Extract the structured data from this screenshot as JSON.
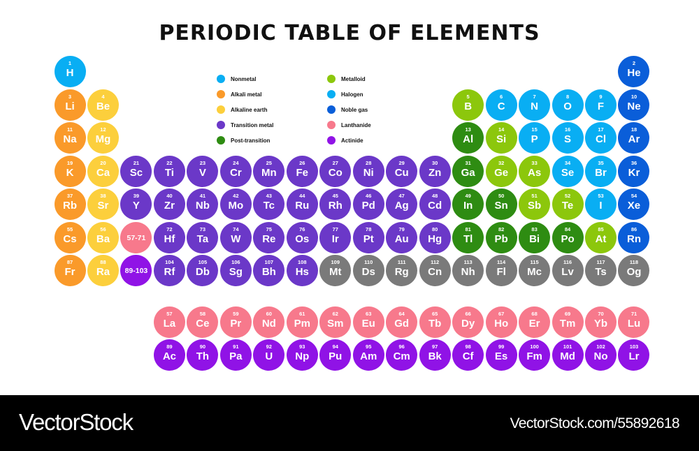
{
  "title": "PERIODIC TABLE OF ELEMENTS",
  "colors": {
    "nonmetal": "#09AEF3",
    "alkali": "#FA9A2A",
    "alkaline": "#FCCF3C",
    "transition": "#6B38C8",
    "post": "#2E8C12",
    "metalloid": "#8CC70C",
    "halogen": "#09AEF3",
    "noble": "#0A5ED9",
    "lanthanide": "#F7798C",
    "actinide": "#9013E6",
    "unknown": "#7A7A7A"
  },
  "legend": [
    {
      "key": "nonmetal",
      "label": "Nonmetal"
    },
    {
      "key": "alkali",
      "label": "Alkali metal"
    },
    {
      "key": "alkaline",
      "label": "Alkaline earth"
    },
    {
      "key": "transition",
      "label": "Transition metal"
    },
    {
      "key": "post",
      "label": "Post-transition"
    },
    {
      "key": "metalloid",
      "label": "Metalloid"
    },
    {
      "key": "halogen",
      "label": "Halogen"
    },
    {
      "key": "noble",
      "label": "Noble gas"
    },
    {
      "key": "lanthanide",
      "label": "Lanthanide"
    },
    {
      "key": "actinide",
      "label": "Actinide"
    }
  ],
  "elements": [
    {
      "n": "1",
      "s": "H",
      "c": "nonmetal",
      "col": 1,
      "row": 1
    },
    {
      "n": "2",
      "s": "He",
      "c": "noble",
      "col": 18,
      "row": 1
    },
    {
      "n": "3",
      "s": "Li",
      "c": "alkali",
      "col": 1,
      "row": 2
    },
    {
      "n": "4",
      "s": "Be",
      "c": "alkaline",
      "col": 2,
      "row": 2
    },
    {
      "n": "5",
      "s": "B",
      "c": "metalloid",
      "col": 13,
      "row": 2
    },
    {
      "n": "6",
      "s": "C",
      "c": "nonmetal",
      "col": 14,
      "row": 2
    },
    {
      "n": "7",
      "s": "N",
      "c": "nonmetal",
      "col": 15,
      "row": 2
    },
    {
      "n": "8",
      "s": "O",
      "c": "nonmetal",
      "col": 16,
      "row": 2
    },
    {
      "n": "9",
      "s": "F",
      "c": "halogen",
      "col": 17,
      "row": 2
    },
    {
      "n": "10",
      "s": "Ne",
      "c": "noble",
      "col": 18,
      "row": 2
    },
    {
      "n": "11",
      "s": "Na",
      "c": "alkali",
      "col": 1,
      "row": 3
    },
    {
      "n": "12",
      "s": "Mg",
      "c": "alkaline",
      "col": 2,
      "row": 3
    },
    {
      "n": "13",
      "s": "Al",
      "c": "post",
      "col": 13,
      "row": 3
    },
    {
      "n": "14",
      "s": "Si",
      "c": "metalloid",
      "col": 14,
      "row": 3
    },
    {
      "n": "15",
      "s": "P",
      "c": "nonmetal",
      "col": 15,
      "row": 3
    },
    {
      "n": "16",
      "s": "S",
      "c": "nonmetal",
      "col": 16,
      "row": 3
    },
    {
      "n": "17",
      "s": "Cl",
      "c": "halogen",
      "col": 17,
      "row": 3
    },
    {
      "n": "18",
      "s": "Ar",
      "c": "noble",
      "col": 18,
      "row": 3
    },
    {
      "n": "19",
      "s": "K",
      "c": "alkali",
      "col": 1,
      "row": 4
    },
    {
      "n": "20",
      "s": "Ca",
      "c": "alkaline",
      "col": 2,
      "row": 4
    },
    {
      "n": "21",
      "s": "Sc",
      "c": "transition",
      "col": 3,
      "row": 4
    },
    {
      "n": "22",
      "s": "Ti",
      "c": "transition",
      "col": 4,
      "row": 4
    },
    {
      "n": "23",
      "s": "V",
      "c": "transition",
      "col": 5,
      "row": 4
    },
    {
      "n": "24",
      "s": "Cr",
      "c": "transition",
      "col": 6,
      "row": 4
    },
    {
      "n": "25",
      "s": "Mn",
      "c": "transition",
      "col": 7,
      "row": 4
    },
    {
      "n": "26",
      "s": "Fe",
      "c": "transition",
      "col": 8,
      "row": 4
    },
    {
      "n": "27",
      "s": "Co",
      "c": "transition",
      "col": 9,
      "row": 4
    },
    {
      "n": "28",
      "s": "Ni",
      "c": "transition",
      "col": 10,
      "row": 4
    },
    {
      "n": "29",
      "s": "Cu",
      "c": "transition",
      "col": 11,
      "row": 4
    },
    {
      "n": "30",
      "s": "Zn",
      "c": "transition",
      "col": 12,
      "row": 4
    },
    {
      "n": "31",
      "s": "Ga",
      "c": "post",
      "col": 13,
      "row": 4
    },
    {
      "n": "32",
      "s": "Ge",
      "c": "metalloid",
      "col": 14,
      "row": 4
    },
    {
      "n": "33",
      "s": "As",
      "c": "metalloid",
      "col": 15,
      "row": 4
    },
    {
      "n": "34",
      "s": "Se",
      "c": "nonmetal",
      "col": 16,
      "row": 4
    },
    {
      "n": "35",
      "s": "Br",
      "c": "halogen",
      "col": 17,
      "row": 4
    },
    {
      "n": "36",
      "s": "Kr",
      "c": "noble",
      "col": 18,
      "row": 4
    },
    {
      "n": "37",
      "s": "Rb",
      "c": "alkali",
      "col": 1,
      "row": 5
    },
    {
      "n": "38",
      "s": "Sr",
      "c": "alkaline",
      "col": 2,
      "row": 5
    },
    {
      "n": "39",
      "s": "Y",
      "c": "transition",
      "col": 3,
      "row": 5
    },
    {
      "n": "40",
      "s": "Zr",
      "c": "transition",
      "col": 4,
      "row": 5
    },
    {
      "n": "41",
      "s": "Nb",
      "c": "transition",
      "col": 5,
      "row": 5
    },
    {
      "n": "42",
      "s": "Mo",
      "c": "transition",
      "col": 6,
      "row": 5
    },
    {
      "n": "43",
      "s": "Tc",
      "c": "transition",
      "col": 7,
      "row": 5
    },
    {
      "n": "44",
      "s": "Ru",
      "c": "transition",
      "col": 8,
      "row": 5
    },
    {
      "n": "45",
      "s": "Rh",
      "c": "transition",
      "col": 9,
      "row": 5
    },
    {
      "n": "46",
      "s": "Pd",
      "c": "transition",
      "col": 10,
      "row": 5
    },
    {
      "n": "47",
      "s": "Ag",
      "c": "transition",
      "col": 11,
      "row": 5
    },
    {
      "n": "48",
      "s": "Cd",
      "c": "transition",
      "col": 12,
      "row": 5
    },
    {
      "n": "49",
      "s": "In",
      "c": "post",
      "col": 13,
      "row": 5
    },
    {
      "n": "50",
      "s": "Sn",
      "c": "post",
      "col": 14,
      "row": 5
    },
    {
      "n": "51",
      "s": "Sb",
      "c": "metalloid",
      "col": 15,
      "row": 5
    },
    {
      "n": "52",
      "s": "Te",
      "c": "metalloid",
      "col": 16,
      "row": 5
    },
    {
      "n": "53",
      "s": "I",
      "c": "halogen",
      "col": 17,
      "row": 5
    },
    {
      "n": "54",
      "s": "Xe",
      "c": "noble",
      "col": 18,
      "row": 5
    },
    {
      "n": "55",
      "s": "Cs",
      "c": "alkali",
      "col": 1,
      "row": 6
    },
    {
      "n": "56",
      "s": "Ba",
      "c": "alkaline",
      "col": 2,
      "row": 6
    },
    {
      "n": "",
      "s": "57-71",
      "c": "lanthanide",
      "col": 3,
      "row": 6,
      "range": true
    },
    {
      "n": "72",
      "s": "Hf",
      "c": "transition",
      "col": 4,
      "row": 6
    },
    {
      "n": "73",
      "s": "Ta",
      "c": "transition",
      "col": 5,
      "row": 6
    },
    {
      "n": "74",
      "s": "W",
      "c": "transition",
      "col": 6,
      "row": 6
    },
    {
      "n": "75",
      "s": "Re",
      "c": "transition",
      "col": 7,
      "row": 6
    },
    {
      "n": "76",
      "s": "Os",
      "c": "transition",
      "col": 8,
      "row": 6
    },
    {
      "n": "77",
      "s": "Ir",
      "c": "transition",
      "col": 9,
      "row": 6
    },
    {
      "n": "78",
      "s": "Pt",
      "c": "transition",
      "col": 10,
      "row": 6
    },
    {
      "n": "79",
      "s": "Au",
      "c": "transition",
      "col": 11,
      "row": 6
    },
    {
      "n": "80",
      "s": "Hg",
      "c": "transition",
      "col": 12,
      "row": 6
    },
    {
      "n": "81",
      "s": "Tl",
      "c": "post",
      "col": 13,
      "row": 6
    },
    {
      "n": "82",
      "s": "Pb",
      "c": "post",
      "col": 14,
      "row": 6
    },
    {
      "n": "83",
      "s": "Bi",
      "c": "post",
      "col": 15,
      "row": 6
    },
    {
      "n": "84",
      "s": "Po",
      "c": "post",
      "col": 16,
      "row": 6
    },
    {
      "n": "85",
      "s": "At",
      "c": "metalloid",
      "col": 17,
      "row": 6
    },
    {
      "n": "86",
      "s": "Rn",
      "c": "noble",
      "col": 18,
      "row": 6
    },
    {
      "n": "87",
      "s": "Fr",
      "c": "alkali",
      "col": 1,
      "row": 7
    },
    {
      "n": "88",
      "s": "Ra",
      "c": "alkaline",
      "col": 2,
      "row": 7
    },
    {
      "n": "",
      "s": "89-103",
      "c": "actinide",
      "col": 3,
      "row": 7,
      "range": true
    },
    {
      "n": "104",
      "s": "Rf",
      "c": "transition",
      "col": 4,
      "row": 7
    },
    {
      "n": "105",
      "s": "Db",
      "c": "transition",
      "col": 5,
      "row": 7
    },
    {
      "n": "106",
      "s": "Sg",
      "c": "transition",
      "col": 6,
      "row": 7
    },
    {
      "n": "107",
      "s": "Bh",
      "c": "transition",
      "col": 7,
      "row": 7
    },
    {
      "n": "108",
      "s": "Hs",
      "c": "transition",
      "col": 8,
      "row": 7
    },
    {
      "n": "109",
      "s": "Mt",
      "c": "unknown",
      "col": 9,
      "row": 7
    },
    {
      "n": "110",
      "s": "Ds",
      "c": "unknown",
      "col": 10,
      "row": 7
    },
    {
      "n": "111",
      "s": "Rg",
      "c": "unknown",
      "col": 11,
      "row": 7
    },
    {
      "n": "112",
      "s": "Cn",
      "c": "unknown",
      "col": 12,
      "row": 7
    },
    {
      "n": "113",
      "s": "Nh",
      "c": "unknown",
      "col": 13,
      "row": 7
    },
    {
      "n": "114",
      "s": "Fl",
      "c": "unknown",
      "col": 14,
      "row": 7
    },
    {
      "n": "115",
      "s": "Mc",
      "c": "unknown",
      "col": 15,
      "row": 7
    },
    {
      "n": "116",
      "s": "Lv",
      "c": "unknown",
      "col": 16,
      "row": 7
    },
    {
      "n": "117",
      "s": "Ts",
      "c": "unknown",
      "col": 17,
      "row": 7
    },
    {
      "n": "118",
      "s": "Og",
      "c": "unknown",
      "col": 18,
      "row": 7
    },
    {
      "n": "57",
      "s": "La",
      "c": "lanthanide",
      "col": 4,
      "row": 9
    },
    {
      "n": "58",
      "s": "Ce",
      "c": "lanthanide",
      "col": 5,
      "row": 9
    },
    {
      "n": "59",
      "s": "Pr",
      "c": "lanthanide",
      "col": 6,
      "row": 9
    },
    {
      "n": "60",
      "s": "Nd",
      "c": "lanthanide",
      "col": 7,
      "row": 9
    },
    {
      "n": "61",
      "s": "Pm",
      "c": "lanthanide",
      "col": 8,
      "row": 9
    },
    {
      "n": "62",
      "s": "Sm",
      "c": "lanthanide",
      "col": 9,
      "row": 9
    },
    {
      "n": "63",
      "s": "Eu",
      "c": "lanthanide",
      "col": 10,
      "row": 9
    },
    {
      "n": "64",
      "s": "Gd",
      "c": "lanthanide",
      "col": 11,
      "row": 9
    },
    {
      "n": "65",
      "s": "Tb",
      "c": "lanthanide",
      "col": 12,
      "row": 9
    },
    {
      "n": "66",
      "s": "Dy",
      "c": "lanthanide",
      "col": 13,
      "row": 9
    },
    {
      "n": "67",
      "s": "Ho",
      "c": "lanthanide",
      "col": 14,
      "row": 9
    },
    {
      "n": "68",
      "s": "Er",
      "c": "lanthanide",
      "col": 15,
      "row": 9
    },
    {
      "n": "69",
      "s": "Tm",
      "c": "lanthanide",
      "col": 16,
      "row": 9
    },
    {
      "n": "70",
      "s": "Yb",
      "c": "lanthanide",
      "col": 17,
      "row": 9
    },
    {
      "n": "71",
      "s": "Lu",
      "c": "lanthanide",
      "col": 18,
      "row": 9
    },
    {
      "n": "89",
      "s": "Ac",
      "c": "actinide",
      "col": 4,
      "row": 10
    },
    {
      "n": "90",
      "s": "Th",
      "c": "actinide",
      "col": 5,
      "row": 10
    },
    {
      "n": "91",
      "s": "Pa",
      "c": "actinide",
      "col": 6,
      "row": 10
    },
    {
      "n": "92",
      "s": "U",
      "c": "actinide",
      "col": 7,
      "row": 10
    },
    {
      "n": "93",
      "s": "Np",
      "c": "actinide",
      "col": 8,
      "row": 10
    },
    {
      "n": "94",
      "s": "Pu",
      "c": "actinide",
      "col": 9,
      "row": 10
    },
    {
      "n": "95",
      "s": "Am",
      "c": "actinide",
      "col": 10,
      "row": 10
    },
    {
      "n": "96",
      "s": "Cm",
      "c": "actinide",
      "col": 11,
      "row": 10
    },
    {
      "n": "97",
      "s": "Bk",
      "c": "actinide",
      "col": 12,
      "row": 10
    },
    {
      "n": "98",
      "s": "Cf",
      "c": "actinide",
      "col": 13,
      "row": 10
    },
    {
      "n": "99",
      "s": "Es",
      "c": "actinide",
      "col": 14,
      "row": 10
    },
    {
      "n": "100",
      "s": "Fm",
      "c": "actinide",
      "col": 15,
      "row": 10
    },
    {
      "n": "101",
      "s": "Md",
      "c": "actinide",
      "col": 16,
      "row": 10
    },
    {
      "n": "102",
      "s": "No",
      "c": "actinide",
      "col": 17,
      "row": 10
    },
    {
      "n": "103",
      "s": "Lr",
      "c": "actinide",
      "col": 18,
      "row": 10
    }
  ],
  "footer": {
    "brand": "VectorStock",
    "url": "VectorStock.com/55892618"
  }
}
